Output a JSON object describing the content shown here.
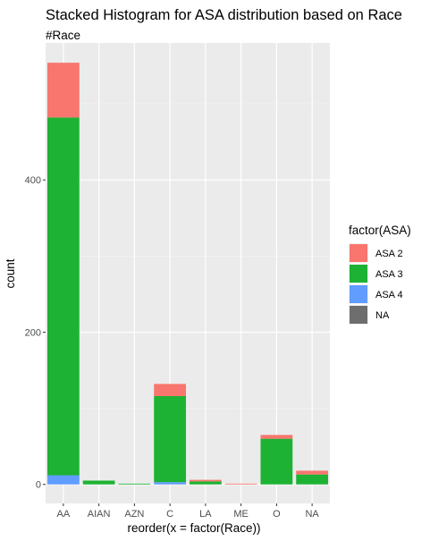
{
  "chart_data": {
    "type": "bar",
    "stacked": true,
    "title": "Stacked Histogram for ASA distribution based on Race",
    "subtitle": "#Race",
    "xlabel": "reorder(x = factor(Race))",
    "ylabel": "count",
    "categories": [
      "AA",
      "AIAN",
      "AZN",
      "C",
      "LA",
      "ME",
      "O",
      "NA"
    ],
    "yticks": [
      0,
      200,
      400
    ],
    "ylim": [
      -25,
      580
    ],
    "grid": true,
    "legend": {
      "title": "factor(ASA)",
      "placement": "right"
    },
    "series": [
      {
        "name": "ASA 4",
        "color": "#619CFF",
        "values": [
          12,
          0,
          0,
          3,
          0,
          0,
          0,
          0
        ]
      },
      {
        "name": "ASA 3",
        "color": "#1DB233",
        "values": [
          470,
          5,
          1,
          113,
          4,
          0,
          60,
          13
        ]
      },
      {
        "name": "ASA 2",
        "color": "#F8766D",
        "values": [
          72,
          0,
          0,
          16,
          2,
          1,
          5,
          5
        ]
      },
      {
        "name": "NA",
        "color": "#6E6E6E",
        "values": [
          0,
          0,
          0,
          0,
          0,
          0,
          0,
          0
        ]
      }
    ]
  }
}
